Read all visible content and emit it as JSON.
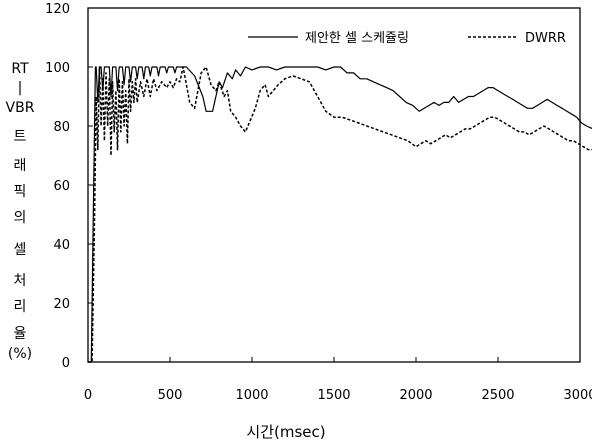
{
  "chart_data": {
    "type": "line",
    "title": "",
    "xlabel": "시간(msec)",
    "ylabel_lines": [
      "RT",
      "|",
      "VBR",
      "트",
      "래",
      "픽",
      "의",
      "셀",
      "처",
      "리",
      "율",
      "(%)"
    ],
    "xlim": [
      0,
      3000
    ],
    "ylim": [
      0,
      120
    ],
    "x_ticks": [
      "0",
      "500",
      "1000",
      "1500",
      "2000",
      "2500",
      "3000"
    ],
    "y_ticks": [
      "0",
      "20",
      "40",
      "60",
      "80",
      "100",
      "120"
    ],
    "grid": false,
    "legend_position": "top-right",
    "series": [
      {
        "name": "제안한 셀 스케쥴링",
        "style": "solid",
        "points": [
          [
            0,
            0
          ],
          [
            20,
            0
          ],
          [
            35,
            60
          ],
          [
            45,
            100
          ],
          [
            50,
            100
          ],
          [
            60,
            88
          ],
          [
            70,
            100
          ],
          [
            80,
            100
          ],
          [
            90,
            92
          ],
          [
            100,
            100
          ],
          [
            130,
            100
          ],
          [
            140,
            90
          ],
          [
            150,
            100
          ],
          [
            170,
            100
          ],
          [
            180,
            92
          ],
          [
            190,
            100
          ],
          [
            210,
            100
          ],
          [
            220,
            94
          ],
          [
            230,
            100
          ],
          [
            250,
            100
          ],
          [
            260,
            95
          ],
          [
            270,
            100
          ],
          [
            290,
            100
          ],
          [
            300,
            96
          ],
          [
            310,
            100
          ],
          [
            330,
            100
          ],
          [
            340,
            96
          ],
          [
            350,
            100
          ],
          [
            370,
            100
          ],
          [
            380,
            97
          ],
          [
            390,
            100
          ],
          [
            420,
            100
          ],
          [
            430,
            97
          ],
          [
            440,
            100
          ],
          [
            470,
            100
          ],
          [
            480,
            98
          ],
          [
            490,
            100
          ],
          [
            520,
            100
          ],
          [
            530,
            98
          ],
          [
            540,
            100
          ],
          [
            580,
            100
          ],
          [
            600,
            100
          ],
          [
            650,
            97
          ],
          [
            700,
            90
          ],
          [
            720,
            85
          ],
          [
            760,
            85
          ],
          [
            780,
            90
          ],
          [
            800,
            95
          ],
          [
            820,
            93
          ],
          [
            850,
            98
          ],
          [
            880,
            96
          ],
          [
            900,
            99
          ],
          [
            930,
            97
          ],
          [
            960,
            100
          ],
          [
            1000,
            99
          ],
          [
            1050,
            100
          ],
          [
            1100,
            100
          ],
          [
            1150,
            99
          ],
          [
            1200,
            100
          ],
          [
            1250,
            100
          ],
          [
            1300,
            100
          ],
          [
            1350,
            100
          ],
          [
            1400,
            100
          ],
          [
            1450,
            99
          ],
          [
            1500,
            100
          ],
          [
            1540,
            100
          ],
          [
            1580,
            98
          ],
          [
            1620,
            98
          ],
          [
            1660,
            96
          ],
          [
            1700,
            96
          ],
          [
            1740,
            95
          ],
          [
            1780,
            94
          ],
          [
            1820,
            93
          ],
          [
            1860,
            92
          ],
          [
            1900,
            90
          ],
          [
            1940,
            88
          ],
          [
            1980,
            87
          ],
          [
            2020,
            85
          ],
          [
            2050,
            86
          ],
          [
            2080,
            87
          ],
          [
            2110,
            88
          ],
          [
            2140,
            87
          ],
          [
            2170,
            88
          ],
          [
            2200,
            88
          ],
          [
            2230,
            90
          ],
          [
            2260,
            88
          ],
          [
            2290,
            89
          ],
          [
            2320,
            90
          ],
          [
            2350,
            90
          ],
          [
            2380,
            91
          ],
          [
            2410,
            92
          ],
          [
            2440,
            93
          ],
          [
            2470,
            93
          ],
          [
            2500,
            92
          ],
          [
            2530,
            91
          ],
          [
            2560,
            90
          ],
          [
            2590,
            89
          ],
          [
            2620,
            88
          ],
          [
            2650,
            87
          ],
          [
            2680,
            86
          ],
          [
            2710,
            86
          ],
          [
            2740,
            87
          ],
          [
            2770,
            88
          ],
          [
            2800,
            89
          ],
          [
            2830,
            88
          ],
          [
            2860,
            87
          ],
          [
            2890,
            86
          ],
          [
            2920,
            85
          ],
          [
            2950,
            84
          ],
          [
            2980,
            83
          ],
          [
            3010,
            81
          ],
          [
            3040,
            80
          ],
          [
            3080,
            79
          ]
        ]
      },
      {
        "name": "DWRR",
        "style": "dashed",
        "points": [
          [
            0,
            0
          ],
          [
            25,
            0
          ],
          [
            40,
            50
          ],
          [
            50,
            90
          ],
          [
            60,
            72
          ],
          [
            70,
            100
          ],
          [
            80,
            80
          ],
          [
            90,
            96
          ],
          [
            100,
            75
          ],
          [
            110,
            98
          ],
          [
            120,
            80
          ],
          [
            130,
            96
          ],
          [
            140,
            70
          ],
          [
            150,
            95
          ],
          [
            160,
            78
          ],
          [
            170,
            92
          ],
          [
            180,
            72
          ],
          [
            190,
            96
          ],
          [
            200,
            78
          ],
          [
            210,
            95
          ],
          [
            220,
            80
          ],
          [
            230,
            92
          ],
          [
            240,
            74
          ],
          [
            250,
            96
          ],
          [
            260,
            85
          ],
          [
            270,
            95
          ],
          [
            280,
            88
          ],
          [
            290,
            96
          ],
          [
            300,
            88
          ],
          [
            320,
            95
          ],
          [
            340,
            90
          ],
          [
            360,
            96
          ],
          [
            380,
            90
          ],
          [
            400,
            96
          ],
          [
            420,
            92
          ],
          [
            450,
            95
          ],
          [
            480,
            93
          ],
          [
            500,
            95
          ],
          [
            520,
            93
          ],
          [
            540,
            96
          ],
          [
            560,
            95
          ],
          [
            580,
            100
          ],
          [
            620,
            88
          ],
          [
            650,
            86
          ],
          [
            690,
            98
          ],
          [
            720,
            100
          ],
          [
            750,
            94
          ],
          [
            780,
            92
          ],
          [
            800,
            95
          ],
          [
            830,
            90
          ],
          [
            850,
            92
          ],
          [
            870,
            85
          ],
          [
            900,
            83
          ],
          [
            930,
            80
          ],
          [
            960,
            78
          ],
          [
            990,
            82
          ],
          [
            1020,
            86
          ],
          [
            1050,
            92
          ],
          [
            1080,
            94
          ],
          [
            1100,
            90
          ],
          [
            1130,
            92
          ],
          [
            1160,
            94
          ],
          [
            1200,
            96
          ],
          [
            1250,
            97
          ],
          [
            1300,
            96
          ],
          [
            1350,
            95
          ],
          [
            1400,
            90
          ],
          [
            1450,
            85
          ],
          [
            1500,
            83
          ],
          [
            1550,
            83
          ],
          [
            1600,
            82
          ],
          [
            1650,
            81
          ],
          [
            1700,
            80
          ],
          [
            1750,
            79
          ],
          [
            1800,
            78
          ],
          [
            1850,
            77
          ],
          [
            1900,
            76
          ],
          [
            1950,
            75
          ],
          [
            2000,
            73
          ],
          [
            2030,
            74
          ],
          [
            2060,
            75
          ],
          [
            2090,
            74
          ],
          [
            2120,
            75
          ],
          [
            2150,
            76
          ],
          [
            2180,
            77
          ],
          [
            2210,
            76
          ],
          [
            2240,
            77
          ],
          [
            2270,
            78
          ],
          [
            2300,
            79
          ],
          [
            2330,
            79
          ],
          [
            2360,
            80
          ],
          [
            2390,
            81
          ],
          [
            2420,
            82
          ],
          [
            2450,
            83
          ],
          [
            2480,
            83
          ],
          [
            2510,
            82
          ],
          [
            2540,
            81
          ],
          [
            2570,
            80
          ],
          [
            2600,
            79
          ],
          [
            2630,
            78
          ],
          [
            2660,
            78
          ],
          [
            2690,
            77
          ],
          [
            2720,
            78
          ],
          [
            2750,
            79
          ],
          [
            2780,
            80
          ],
          [
            2810,
            79
          ],
          [
            2840,
            78
          ],
          [
            2870,
            77
          ],
          [
            2900,
            76
          ],
          [
            2930,
            75
          ],
          [
            2960,
            75
          ],
          [
            2990,
            74
          ],
          [
            3020,
            73
          ],
          [
            3050,
            72
          ],
          [
            3080,
            72
          ]
        ]
      }
    ]
  }
}
